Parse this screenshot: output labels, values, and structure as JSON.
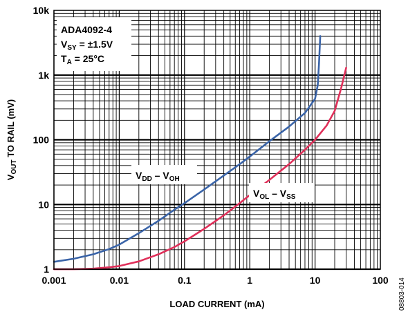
{
  "chart_data": {
    "type": "line",
    "xscale": "log",
    "yscale": "log",
    "xlim": [
      0.001,
      100
    ],
    "ylim": [
      1,
      10000
    ],
    "grid": true,
    "xlabel": "LOAD CURRENT (mA)",
    "ylabel": {
      "parts": [
        {
          "text": "V",
          "sub": false
        },
        {
          "text": "OUT",
          "sub": true
        },
        {
          "text": " TO RAIL (mV)",
          "sub": false
        }
      ]
    },
    "x_ticks": [
      {
        "value": 0.001,
        "label": "0.001"
      },
      {
        "value": 0.01,
        "label": "0.01"
      },
      {
        "value": 0.1,
        "label": "0.1"
      },
      {
        "value": 1,
        "label": "1"
      },
      {
        "value": 10,
        "label": "10"
      },
      {
        "value": 100,
        "label": "100"
      }
    ],
    "y_ticks": [
      {
        "value": 1,
        "label": "1"
      },
      {
        "value": 10,
        "label": "10"
      },
      {
        "value": 100,
        "label": "100"
      },
      {
        "value": 1000,
        "label": "1k"
      },
      {
        "value": 10000,
        "label": "10k"
      }
    ],
    "legend_box": {
      "lines": [
        {
          "parts": [
            {
              "text": "ADA4092-4",
              "sub": false
            }
          ]
        },
        {
          "parts": [
            {
              "text": "V",
              "sub": false
            },
            {
              "text": "SY",
              "sub": true
            },
            {
              "text": " = ±1.5V",
              "sub": false
            }
          ]
        },
        {
          "parts": [
            {
              "text": "T",
              "sub": false
            },
            {
              "text": "A",
              "sub": true
            },
            {
              "text": " = 25°C",
              "sub": false
            }
          ]
        }
      ]
    },
    "series": [
      {
        "label": {
          "parts": [
            {
              "text": "V",
              "sub": false
            },
            {
              "text": "DD",
              "sub": true
            },
            {
              "text": " – V",
              "sub": false
            },
            {
              "text": "OH",
              "sub": true
            }
          ]
        },
        "color": "#3a64a8",
        "x": [
          0.001,
          0.002,
          0.004,
          0.007,
          0.01,
          0.02,
          0.04,
          0.07,
          0.1,
          0.2,
          0.4,
          0.7,
          1,
          2,
          4,
          7,
          10,
          11,
          11.5,
          12
        ],
        "y": [
          1.3,
          1.45,
          1.7,
          2.05,
          2.4,
          3.6,
          5.6,
          8.3,
          10.5,
          17,
          28,
          42,
          55,
          95,
          160,
          260,
          430,
          700,
          1500,
          4000
        ]
      },
      {
        "label": {
          "parts": [
            {
              "text": "V",
              "sub": false
            },
            {
              "text": "OL",
              "sub": true
            },
            {
              "text": " – V",
              "sub": false
            },
            {
              "text": "SS",
              "sub": true
            }
          ]
        },
        "color": "#e0305a",
        "x": [
          0.001,
          0.002,
          0.004,
          0.007,
          0.01,
          0.02,
          0.04,
          0.07,
          0.1,
          0.2,
          0.4,
          0.7,
          1,
          2,
          4,
          7,
          10,
          15,
          20,
          25,
          30
        ],
        "y": [
          1.0,
          1.0,
          1.02,
          1.07,
          1.12,
          1.32,
          1.7,
          2.2,
          2.7,
          4.2,
          6.8,
          10.5,
          14,
          24,
          42,
          70,
          100,
          165,
          280,
          620,
          1300
        ]
      }
    ],
    "figure_id": "08803-014"
  }
}
